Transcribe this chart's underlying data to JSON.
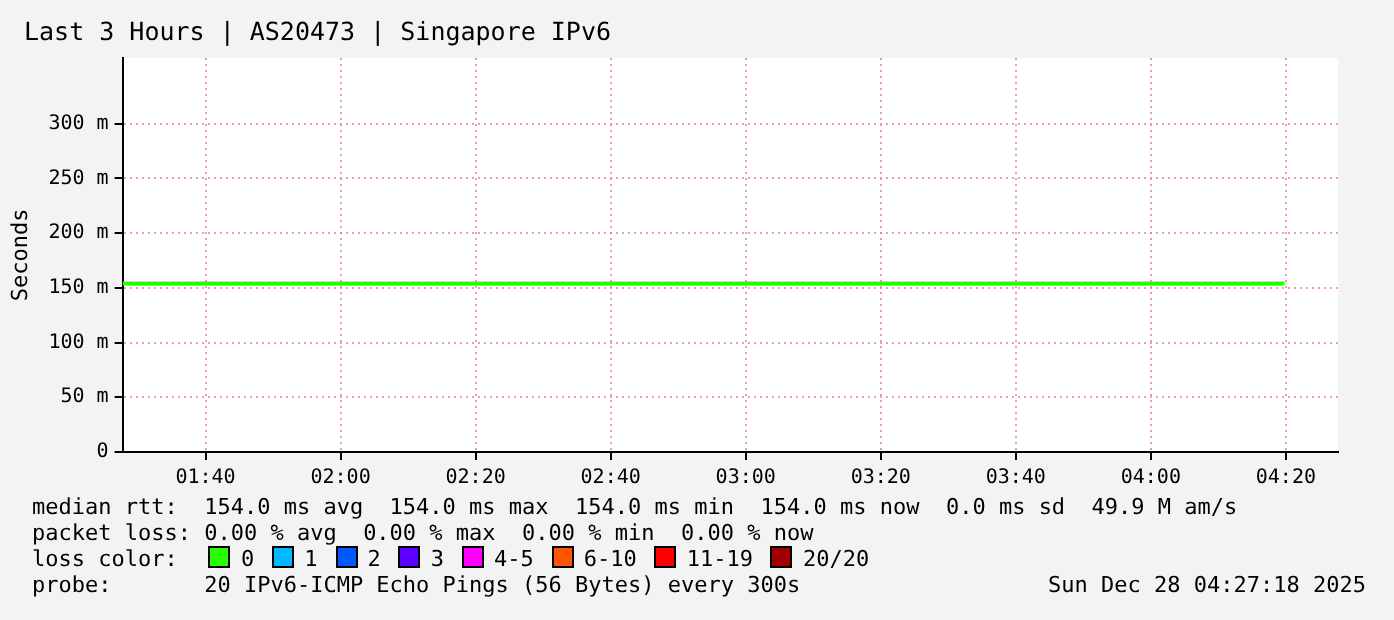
{
  "chart_data": {
    "type": "line",
    "title": "Last 3 Hours | AS20473 | Singapore IPv6",
    "ylabel": "Seconds",
    "x": [
      1.462,
      4.33
    ],
    "xlim": [
      1.462,
      4.462
    ],
    "xticks": [
      {
        "value": 1.6667,
        "label": "01:40"
      },
      {
        "value": 2,
        "label": "02:00"
      },
      {
        "value": 2.3333,
        "label": "02:20"
      },
      {
        "value": 2.6667,
        "label": "02:40"
      },
      {
        "value": 3,
        "label": "03:00"
      },
      {
        "value": 3.3333,
        "label": "03:20"
      },
      {
        "value": 3.6667,
        "label": "03:40"
      },
      {
        "value": 4,
        "label": "04:00"
      },
      {
        "value": 4.3333,
        "label": "04:20"
      }
    ],
    "ylim": [
      0,
      360
    ],
    "yticks": [
      0,
      {
        "value": 50,
        "label": "50 m"
      },
      {
        "value": 100,
        "label": "100 m"
      },
      {
        "value": 150,
        "label": "150 m"
      },
      {
        "value": 200,
        "label": "200 m"
      },
      {
        "value": 250,
        "label": "250 m"
      },
      {
        "value": 300,
        "label": "300 m"
      }
    ],
    "grid": true,
    "marker": "none",
    "line_style": "solid",
    "legend": "bottom",
    "legend_title": "loss color:",
    "series": [
      {
        "name": "0",
        "color": "#26ff00",
        "values": [
          154,
          154
        ]
      },
      {
        "name": "1",
        "color": "#00b8ff",
        "values": [
          null,
          null
        ]
      },
      {
        "name": "2",
        "color": "#0059ff",
        "values": [
          null,
          null
        ]
      },
      {
        "name": "3",
        "color": "#5e00ff",
        "values": [
          null,
          null
        ]
      },
      {
        "name": "4-5",
        "color": "#ff00ff",
        "values": [
          null,
          null
        ]
      },
      {
        "name": "6-10",
        "color": "#ff5500",
        "values": [
          null,
          null
        ]
      },
      {
        "name": "11-19",
        "color": "#ff0000",
        "values": [
          null,
          null
        ]
      },
      {
        "name": "20/20",
        "color": "#a10000",
        "values": [
          null,
          null
        ]
      }
    ],
    "annotations": [
      "median rtt:  154.0 ms avg  154.0 ms max  154.0 ms min  154.0 ms now  0.0 ms sd  49.9 M am/s",
      "packet loss: 0.00 % avg  0.00 % max  0.00 % min  0.00 % now",
      "probe:       20 IPv6-ICMP Echo Pings (56 Bytes) every 300s",
      "Sun Dec 28 04:27:18 2025"
    ]
  }
}
